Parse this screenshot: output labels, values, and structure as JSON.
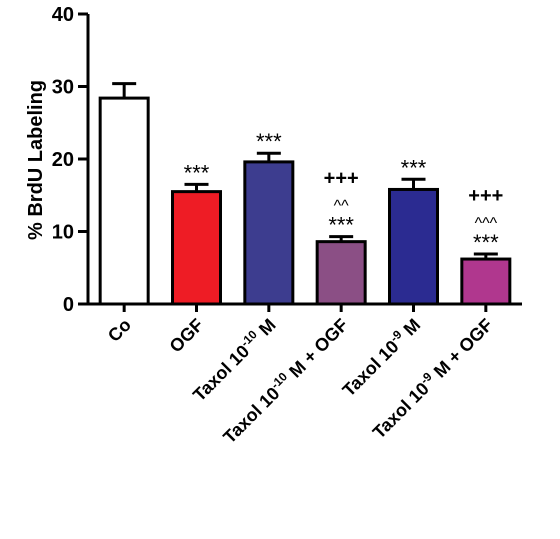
{
  "chart_data": {
    "type": "bar",
    "title": "",
    "xlabel": "",
    "ylabel": "% BrdU Labeling",
    "ylim": [
      0,
      40
    ],
    "yticks": [
      0,
      10,
      20,
      30,
      40
    ],
    "grid": false,
    "categories": [
      {
        "base": "Co",
        "sup": "",
        "tail": ""
      },
      {
        "base": "OGF",
        "sup": "",
        "tail": ""
      },
      {
        "base": "Taxol 10",
        "sup": "-10",
        "tail": " M"
      },
      {
        "base": "Taxol 10",
        "sup": "-10",
        "tail": " M + OGF"
      },
      {
        "base": "Taxol 10",
        "sup": "-9",
        "tail": " M"
      },
      {
        "base": "Taxol 10",
        "sup": "-9",
        "tail": " M + OGF"
      }
    ],
    "values": [
      28.4,
      15.5,
      19.6,
      8.6,
      15.8,
      6.2
    ],
    "errors": [
      2.0,
      1.0,
      1.2,
      0.7,
      1.4,
      0.7
    ],
    "colors": [
      "#ffffff",
      "#ee1c25",
      "#3d3d8f",
      "#8b4f85",
      "#2b2b91",
      "#b0378e"
    ],
    "annotations": [
      [],
      [
        "***"
      ],
      [
        "***"
      ],
      [
        "+++",
        "^^",
        "***"
      ],
      [
        "***"
      ],
      [
        "+++",
        "^^^",
        "***"
      ]
    ]
  }
}
